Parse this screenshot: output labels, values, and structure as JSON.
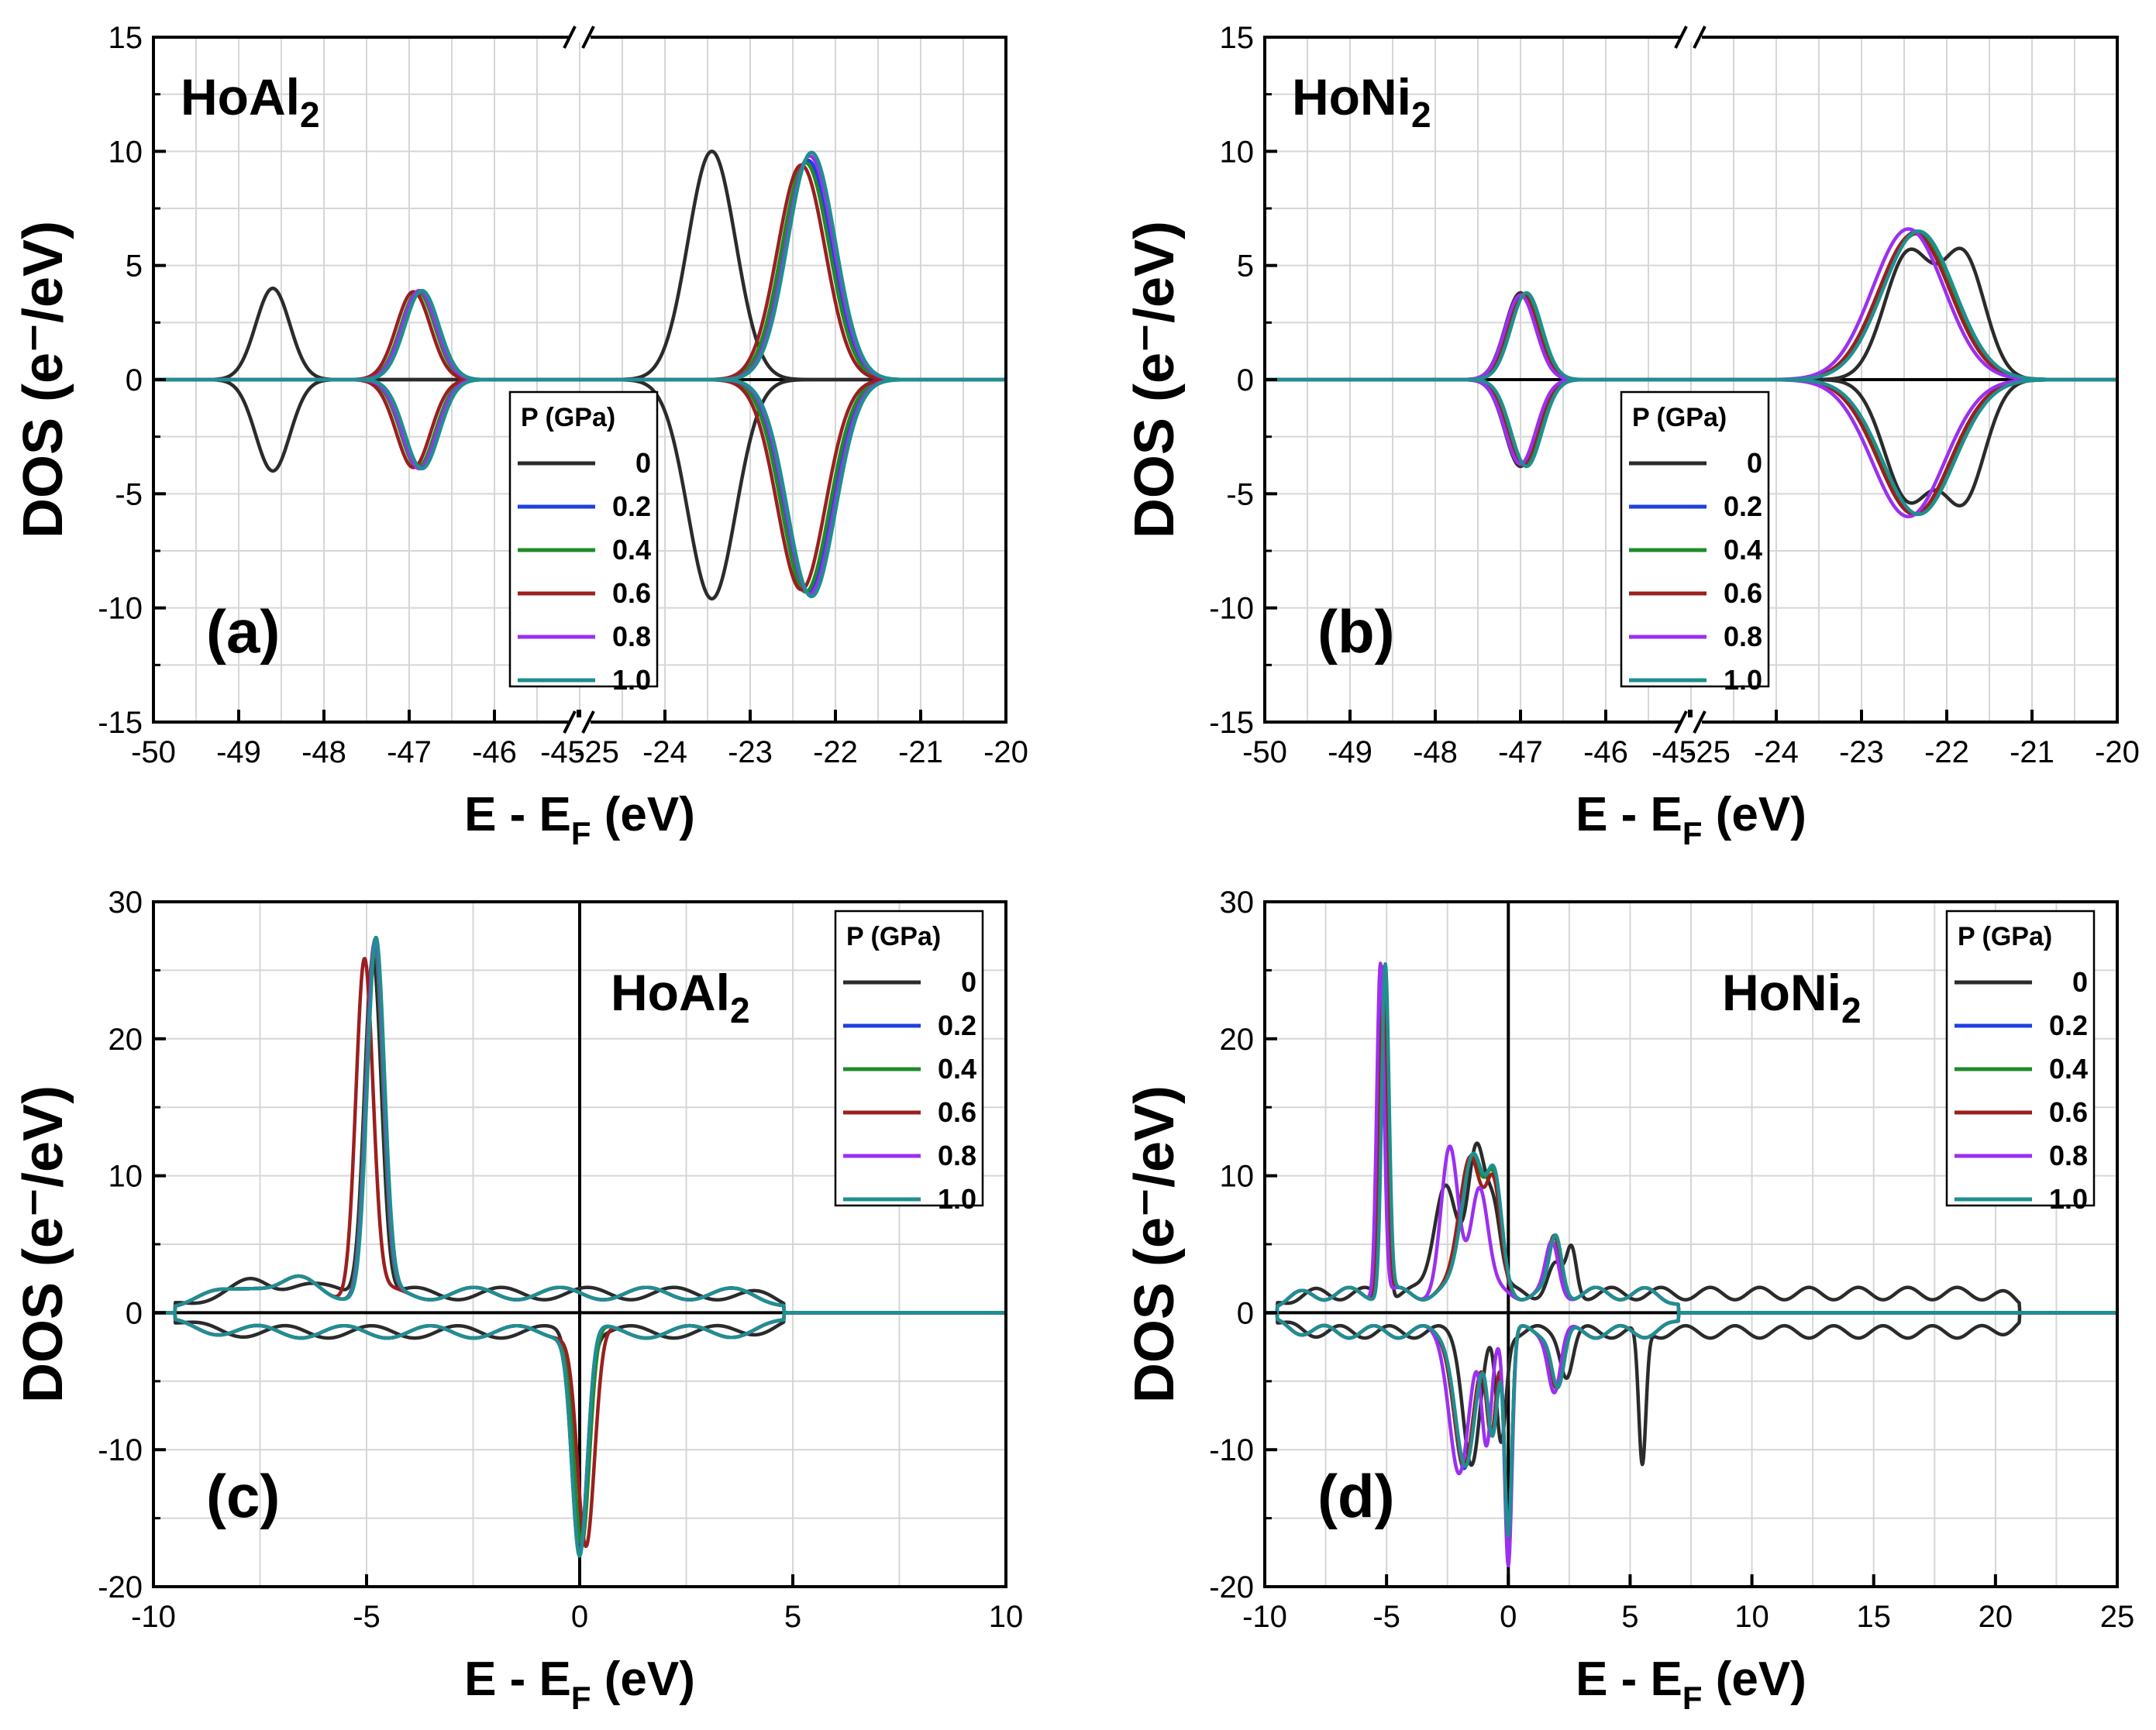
{
  "colors": {
    "0": "#2b2b2b",
    "0.2": "#1f3fe0",
    "0.4": "#1f8a2a",
    "0.6": "#9b1f1f",
    "0.8": "#9b30f0",
    "1.0": "#1f8f8f",
    "grid": "#d6d6d6",
    "axis": "#000000"
  },
  "chart_data": [
    {
      "type": "line",
      "panel_label": "(a)",
      "compound": "HoAl",
      "compound_subscript": "2",
      "title": "HoAl2",
      "xlabel_main": "E - E",
      "xlabel_sub": "F",
      "xlabel_unit": " (eV)",
      "ylabel": "DOS (e⁻/eV)",
      "ylim": [
        -15,
        15
      ],
      "yticks": [
        "-15",
        "-10",
        "-5",
        "0",
        "5",
        "10",
        "15"
      ],
      "broken_axis": true,
      "segment1_range": [
        -50,
        -45
      ],
      "segment2_range": [
        -25,
        -20
      ],
      "xticks_seg1": [
        "-50",
        "-49",
        "-48",
        "-47",
        "-46",
        "-45"
      ],
      "xticks_seg2": [
        "-25",
        "-24",
        "-23",
        "-22",
        "-21",
        "-20"
      ],
      "legend_title": "P (GPa)",
      "legend_placement": "lower-center",
      "series": [
        {
          "name": "0",
          "peaks": [
            {
              "x": -48.6,
              "up": 4.0,
              "down": -4.0,
              "w": 0.2
            },
            {
              "x": -23.45,
              "up": 10.0,
              "down": -9.6,
              "w": 0.28
            }
          ]
        },
        {
          "name": "0.2",
          "peaks": [
            {
              "x": -46.88,
              "up": 3.85,
              "down": -3.85,
              "w": 0.2
            },
            {
              "x": -22.32,
              "up": 9.6,
              "down": -9.3,
              "w": 0.28
            }
          ]
        },
        {
          "name": "0.4",
          "peaks": [
            {
              "x": -46.9,
              "up": 3.85,
              "down": -3.85,
              "w": 0.2
            },
            {
              "x": -22.35,
              "up": 9.5,
              "down": -9.3,
              "w": 0.28
            }
          ]
        },
        {
          "name": "0.6",
          "peaks": [
            {
              "x": -46.95,
              "up": 3.85,
              "down": -3.85,
              "w": 0.2
            },
            {
              "x": -22.4,
              "up": 9.4,
              "down": -9.2,
              "w": 0.28
            }
          ]
        },
        {
          "name": "0.8",
          "peaks": [
            {
              "x": -46.88,
              "up": 3.9,
              "down": -3.9,
              "w": 0.2
            },
            {
              "x": -22.3,
              "up": 9.8,
              "down": -9.4,
              "w": 0.28
            }
          ]
        },
        {
          "name": "1.0",
          "peaks": [
            {
              "x": -46.85,
              "up": 3.9,
              "down": -3.9,
              "w": 0.2
            },
            {
              "x": -22.28,
              "up": 9.95,
              "down": -9.5,
              "w": 0.28
            }
          ]
        }
      ]
    },
    {
      "type": "line",
      "panel_label": "(b)",
      "compound": "HoNi",
      "compound_subscript": "2",
      "title": "HoNi2",
      "xlabel_main": "E - E",
      "xlabel_sub": "F",
      "xlabel_unit": " (eV)",
      "ylabel": "DOS (e⁻/eV)",
      "ylim": [
        -15,
        15
      ],
      "yticks": [
        "-15",
        "-10",
        "-5",
        "0",
        "5",
        "10",
        "15"
      ],
      "broken_axis": true,
      "segment1_range": [
        -50,
        -45
      ],
      "segment2_range": [
        -25,
        -20
      ],
      "xticks_seg1": [
        "-50",
        "-49",
        "-48",
        "-47",
        "-46",
        "-45"
      ],
      "xticks_seg2": [
        "-25",
        "-24",
        "-23",
        "-22",
        "-21",
        "-20"
      ],
      "legend_title": "P (GPa)",
      "legend_placement": "lower-center",
      "series": [
        {
          "name": "0",
          "peaks": [
            {
              "x": -47.0,
              "up": 3.8,
              "down": -3.8,
              "w": 0.18
            },
            {
              "x": -22.45,
              "up": 5.5,
              "down": -5.2,
              "w": 0.28
            },
            {
              "x": -21.8,
              "up": 5.3,
              "down": -5.1,
              "w": 0.25
            }
          ]
        },
        {
          "name": "0.2",
          "peaks": [
            {
              "x": -46.95,
              "up": 3.75,
              "down": -3.75,
              "w": 0.18
            },
            {
              "x": -22.35,
              "up": 6.5,
              "down": -5.9,
              "w": 0.42
            }
          ]
        },
        {
          "name": "0.4",
          "peaks": [
            {
              "x": -46.95,
              "up": 3.75,
              "down": -3.75,
              "w": 0.18
            },
            {
              "x": -22.35,
              "up": 6.4,
              "down": -5.9,
              "w": 0.42
            }
          ]
        },
        {
          "name": "0.6",
          "peaks": [
            {
              "x": -46.98,
              "up": 3.75,
              "down": -3.75,
              "w": 0.18
            },
            {
              "x": -22.38,
              "up": 6.4,
              "down": -5.9,
              "w": 0.42
            }
          ]
        },
        {
          "name": "0.8",
          "peaks": [
            {
              "x": -47.0,
              "up": 3.7,
              "down": -3.7,
              "w": 0.18
            },
            {
              "x": -22.45,
              "up": 6.6,
              "down": -6.0,
              "w": 0.42
            }
          ]
        },
        {
          "name": "1.0",
          "peaks": [
            {
              "x": -46.93,
              "up": 3.8,
              "down": -3.8,
              "w": 0.18
            },
            {
              "x": -22.33,
              "up": 6.5,
              "down": -5.9,
              "w": 0.42
            }
          ]
        }
      ]
    },
    {
      "type": "line",
      "panel_label": "(c)",
      "compound": "HoAl",
      "compound_subscript": "2",
      "title": "HoAl2",
      "xlabel_main": "E - E",
      "xlabel_sub": "F",
      "xlabel_unit": " (eV)",
      "ylabel": "DOS (e⁻/eV)",
      "xlim": [
        -10,
        10
      ],
      "ylim": [
        -20,
        30
      ],
      "xticks": [
        "-10",
        "-5",
        "0",
        "5",
        "10"
      ],
      "yticks": [
        "-20",
        "-10",
        "0",
        "10",
        "20",
        "30"
      ],
      "legend_title": "P (GPa)",
      "legend_placement": "top-right",
      "series": [
        {
          "name": "0",
          "up_peaks": [
            {
              "x": -4.85,
              "a": 25.0,
              "w": 0.2
            },
            {
              "x": -7.6,
              "a": 0.8,
              "w": 0.4
            },
            {
              "x": -6.6,
              "a": 0.8,
              "w": 0.4
            }
          ],
          "down_peaks": [
            {
              "x": 0.0,
              "a": -15.5,
              "w": 0.18
            }
          ]
        },
        {
          "name": "0.2",
          "up_peaks": [
            {
              "x": -4.8,
              "a": 25.5,
              "w": 0.2
            },
            {
              "x": -7.6,
              "a": 0.8,
              "w": 0.4
            },
            {
              "x": -6.6,
              "a": 0.8,
              "w": 0.4
            }
          ],
          "down_peaks": [
            {
              "x": 0.0,
              "a": -16.0,
              "w": 0.18
            }
          ]
        },
        {
          "name": "0.4",
          "up_peaks": [
            {
              "x": -4.82,
              "a": 25.3,
              "w": 0.2
            },
            {
              "x": -7.6,
              "a": 0.8,
              "w": 0.4
            },
            {
              "x": -6.6,
              "a": 0.8,
              "w": 0.4
            }
          ],
          "down_peaks": [
            {
              "x": 0.05,
              "a": -15.5,
              "w": 0.18
            }
          ]
        },
        {
          "name": "0.6",
          "up_peaks": [
            {
              "x": -5.05,
              "a": 24.5,
              "w": 0.2
            },
            {
              "x": -7.6,
              "a": 0.8,
              "w": 0.4
            },
            {
              "x": -6.6,
              "a": 0.8,
              "w": 0.4
            }
          ],
          "down_peaks": [
            {
              "x": 0.15,
              "a": -15.8,
              "w": 0.2
            }
          ]
        },
        {
          "name": "0.8",
          "up_peaks": [
            {
              "x": -4.8,
              "a": 25.6,
              "w": 0.2
            },
            {
              "x": -7.6,
              "a": 0.8,
              "w": 0.4
            },
            {
              "x": -6.6,
              "a": 0.8,
              "w": 0.4
            }
          ],
          "down_peaks": [
            {
              "x": 0.0,
              "a": -16.2,
              "w": 0.18
            }
          ]
        },
        {
          "name": "1.0",
          "up_peaks": [
            {
              "x": -4.78,
              "a": 25.7,
              "w": 0.2
            },
            {
              "x": -7.6,
              "a": 0.8,
              "w": 0.4
            },
            {
              "x": -6.6,
              "a": 0.8,
              "w": 0.4
            }
          ],
          "down_peaks": [
            {
              "x": 0.0,
              "a": -16.3,
              "w": 0.18
            }
          ]
        }
      ]
    },
    {
      "type": "line",
      "panel_label": "(d)",
      "compound": "HoNi",
      "compound_subscript": "2",
      "title": "HoNi2",
      "xlabel_main": "E - E",
      "xlabel_sub": "F",
      "xlabel_unit": " (eV)",
      "ylabel": "DOS (e⁻/eV)",
      "xlim": [
        -10,
        25
      ],
      "ylim": [
        -20,
        30
      ],
      "xticks": [
        "-10",
        "-5",
        "0",
        "5",
        "10",
        "15",
        "20",
        "25"
      ],
      "yticks": [
        "-20",
        "-10",
        "0",
        "10",
        "20",
        "30"
      ],
      "legend_title": "P (GPa)",
      "legend_placement": "top-right",
      "series": [
        {
          "name": "0",
          "up_peaks": [
            {
              "x": -5.1,
              "a": 24.0,
              "w": 0.15
            },
            {
              "x": -2.6,
              "a": 8.2,
              "w": 0.45
            },
            {
              "x": -1.3,
              "a": 10.5,
              "w": 0.35
            },
            {
              "x": -0.6,
              "a": 6.0,
              "w": 0.3
            },
            {
              "x": 1.9,
              "a": 2.0,
              "w": 0.3
            },
            {
              "x": 2.6,
              "a": 3.2,
              "w": 0.2
            }
          ],
          "down_peaks": [
            {
              "x": -1.5,
              "a": -9.5,
              "w": 0.35
            },
            {
              "x": -0.3,
              "a": -8.0,
              "w": 0.2
            },
            {
              "x": 2.4,
              "a": -3.0,
              "w": 0.25
            },
            {
              "x": 5.5,
              "a": -10.0,
              "w": 0.15
            }
          ]
        },
        {
          "name": "0.2",
          "up_peaks": [
            {
              "x": -5.1,
              "a": 24.0,
              "w": 0.15
            },
            {
              "x": -1.5,
              "a": 10.5,
              "w": 0.45
            },
            {
              "x": -0.6,
              "a": 7.0,
              "w": 0.3
            },
            {
              "x": 1.9,
              "a": 4.0,
              "w": 0.25
            }
          ],
          "down_peaks": [
            {
              "x": -1.8,
              "a": -10.2,
              "w": 0.4
            },
            {
              "x": -0.7,
              "a": -7.0,
              "w": 0.2
            },
            {
              "x": 0.0,
              "a": -14.5,
              "w": 0.15
            },
            {
              "x": 2.0,
              "a": -4.0,
              "w": 0.25
            }
          ]
        },
        {
          "name": "0.4",
          "up_peaks": [
            {
              "x": -5.1,
              "a": 24.0,
              "w": 0.15
            },
            {
              "x": -1.5,
              "a": 10.5,
              "w": 0.45
            },
            {
              "x": -0.6,
              "a": 7.0,
              "w": 0.3
            },
            {
              "x": 1.9,
              "a": 4.0,
              "w": 0.25
            }
          ],
          "down_peaks": [
            {
              "x": -1.8,
              "a": -10.0,
              "w": 0.4
            },
            {
              "x": -0.7,
              "a": -7.0,
              "w": 0.2
            },
            {
              "x": 0.0,
              "a": -15.0,
              "w": 0.15
            },
            {
              "x": 2.0,
              "a": -4.0,
              "w": 0.25
            }
          ]
        },
        {
          "name": "0.6",
          "up_peaks": [
            {
              "x": -5.15,
              "a": 23.8,
              "w": 0.15
            },
            {
              "x": -1.55,
              "a": 10.4,
              "w": 0.45
            },
            {
              "x": -0.6,
              "a": 7.0,
              "w": 0.3
            },
            {
              "x": 1.9,
              "a": 4.0,
              "w": 0.25
            }
          ],
          "down_peaks": [
            {
              "x": -1.8,
              "a": -10.0,
              "w": 0.4
            },
            {
              "x": -0.7,
              "a": -7.0,
              "w": 0.2
            },
            {
              "x": 0.0,
              "a": -15.2,
              "w": 0.15
            },
            {
              "x": 2.0,
              "a": -4.0,
              "w": 0.25
            }
          ]
        },
        {
          "name": "0.8",
          "up_peaks": [
            {
              "x": -5.25,
              "a": 24.4,
              "w": 0.15
            },
            {
              "x": -2.4,
              "a": 10.3,
              "w": 0.35
            },
            {
              "x": -1.2,
              "a": 8.0,
              "w": 0.35
            },
            {
              "x": 1.8,
              "a": 3.5,
              "w": 0.25
            }
          ],
          "down_peaks": [
            {
              "x": -2.0,
              "a": -10.3,
              "w": 0.4
            },
            {
              "x": -0.9,
              "a": -8.0,
              "w": 0.2
            },
            {
              "x": 0.0,
              "a": -17.0,
              "w": 0.15
            },
            {
              "x": 1.9,
              "a": -4.2,
              "w": 0.25
            }
          ]
        },
        {
          "name": "1.0",
          "up_peaks": [
            {
              "x": -5.05,
              "a": 24.1,
              "w": 0.15
            },
            {
              "x": -1.45,
              "a": 10.6,
              "w": 0.45
            },
            {
              "x": -0.55,
              "a": 7.2,
              "w": 0.3
            },
            {
              "x": 1.95,
              "a": 4.1,
              "w": 0.25
            }
          ],
          "down_peaks": [
            {
              "x": -1.75,
              "a": -10.1,
              "w": 0.4
            },
            {
              "x": -0.65,
              "a": -7.0,
              "w": 0.2
            },
            {
              "x": 0.0,
              "a": -14.8,
              "w": 0.15
            },
            {
              "x": 2.05,
              "a": -4.0,
              "w": 0.25
            }
          ]
        }
      ]
    }
  ]
}
